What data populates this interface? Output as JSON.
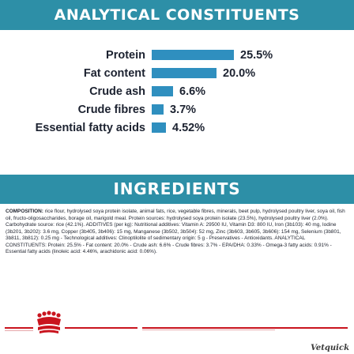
{
  "analytical": {
    "heading": "ANALYTICAL CONSTITUENTS",
    "rows": [
      {
        "label": "Protein",
        "value": "25.5%",
        "percent": 25.5
      },
      {
        "label": "Fat content",
        "value": "20.0%",
        "percent": 20.0
      },
      {
        "label": "Crude ash",
        "value": "6.6%",
        "percent": 6.6
      },
      {
        "label": "Crude fibres",
        "value": "3.7%",
        "percent": 3.7
      },
      {
        "label": "Essential fatty acids",
        "value": "4.52%",
        "percent": 4.52
      }
    ]
  },
  "ingredients": {
    "heading": "INGREDIENTS",
    "composition_label": "COMPOSITION:",
    "composition_text": " rice flour, hydrolysed soya protein isolate, animal fats, rice, vegetable fibres, minerals, beet pulp, hydrolysed poultry liver, soya oil, fish oil, fructo-oligosaccharides, borage oil, marigold meal. Protein sources: hydrolysed soya protein isolate (23.5%), hydrolysed poultry liver (2.0%). Carbohydrate source: rice (42.1%). ADDITIVES (per kg): Nutritional additives: Vitamin A: 29500 IU, Vitamin D3: 800 IU, Iron (3b103): 40 mg, Iodine (3b201, 3b202): 3.6 mg, Copper (3b405, 3b406): 15 mg, Manganese (3b502, 3b504): 52 mg, Zinc (3b603, 3b605, 3b606): 154 mg, Selenium (3b801, 3b811, 3b812): 0.25 mg - Technological additives: Clinoptilolite of sedimentary origin: 5 g - Preservatives - Antioxidants. ANALYTICAL CONSTITUENTS: Protein: 25.5% - Fat content: 20.0% - Crude ash: 6.6% - Crude fibres: 3.7% - EPA/DHA: 0.33% - Omega-3 fatty acids: 0.91% - Essential fatty acids (linoleic acid: 4.46%, arachidonic acid: 0.06%)."
  },
  "branding": {
    "logo_icon": "royal-canin-crown-logo",
    "logo_color": "#c9141e",
    "watermark": "Vetquick"
  }
}
